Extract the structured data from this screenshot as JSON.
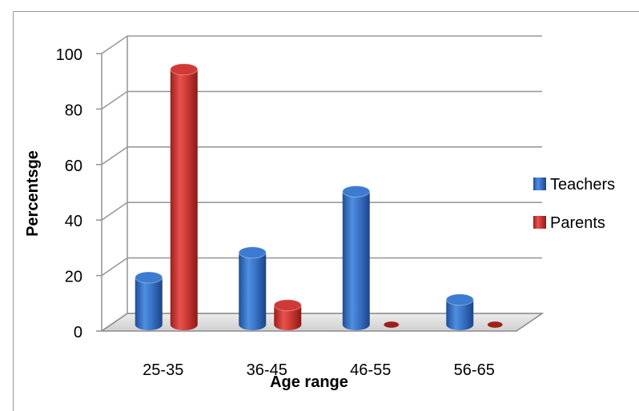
{
  "chart_data": {
    "type": "bar",
    "title": "",
    "xlabel": "Age range",
    "ylabel": "Percentsge",
    "ylim": [
      0,
      100
    ],
    "yticks": [
      0,
      20,
      40,
      60,
      80,
      100
    ],
    "categories": [
      "25-35",
      "36-45",
      "46-55",
      "56-65"
    ],
    "series": [
      {
        "name": "Teachers",
        "values": [
          17,
          26,
          48,
          9
        ],
        "color": "#3c7bd0"
      },
      {
        "name": "Parents",
        "values": [
          92,
          7,
          0,
          0
        ],
        "color": "#d03a36"
      }
    ],
    "grid": true,
    "legend": "right",
    "style": "3d-cylinder"
  }
}
